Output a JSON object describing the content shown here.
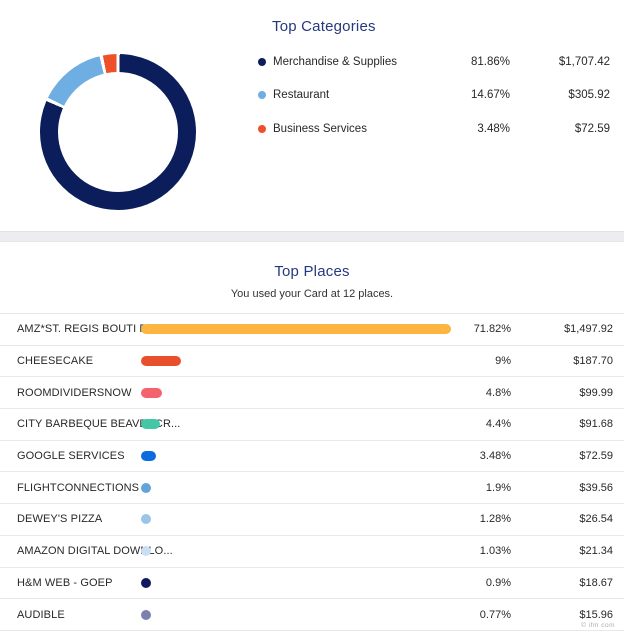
{
  "top_categories": {
    "title": "Top Categories",
    "legend": [
      {
        "label": "Merchandise & Supplies",
        "pct": "81.86%",
        "pct_value": 81.86,
        "amount": "$1,707.42",
        "color": "#0B1E5B"
      },
      {
        "label": "Restaurant",
        "pct": "14.67%",
        "pct_value": 14.67,
        "amount": "$305.92",
        "color": "#6FAEE3"
      },
      {
        "label": "Business Services",
        "pct": "3.48%",
        "pct_value": 3.48,
        "amount": "$72.59",
        "color": "#EE5129"
      }
    ]
  },
  "top_places": {
    "title": "Top Places",
    "subtitle": "You used your Card at 12 places.",
    "rows": [
      {
        "label": "AMZ*ST. REGIS BOUTI FR9A...",
        "pct": "71.82%",
        "pct_value": 71.82,
        "amount": "$1,497.92",
        "color": "#FBB540"
      },
      {
        "label": "CHEESECAKE",
        "pct": "9%",
        "pct_value": 9,
        "amount": "$187.70",
        "color": "#E8502B"
      },
      {
        "label": "ROOMDIVIDERSNOW",
        "pct": "4.8%",
        "pct_value": 4.8,
        "amount": "$99.99",
        "color": "#F4626C"
      },
      {
        "label": "CITY BARBEQUE BEAVERCR...",
        "pct": "4.4%",
        "pct_value": 4.4,
        "amount": "$91.68",
        "color": "#45C6A5"
      },
      {
        "label": "GOOGLE SERVICES",
        "pct": "3.48%",
        "pct_value": 3.48,
        "amount": "$72.59",
        "color": "#0D6BDF"
      },
      {
        "label": "FLIGHTCONNECTIONS",
        "pct": "1.9%",
        "pct_value": 1.9,
        "amount": "$39.56",
        "color": "#64A2DA"
      },
      {
        "label": "DEWEY'S PIZZA",
        "pct": "1.28%",
        "pct_value": 1.28,
        "amount": "$26.54",
        "color": "#9AC4E8"
      },
      {
        "label": "AMAZON DIGITAL DOWNLO...",
        "pct": "1.03%",
        "pct_value": 1.03,
        "amount": "$21.34",
        "color": "#CADFF3"
      },
      {
        "label": "H&M WEB - GOEP",
        "pct": "0.9%",
        "pct_value": 0.9,
        "amount": "$18.67",
        "color": "#11175E"
      },
      {
        "label": "AUDIBLE",
        "pct": "0.77%",
        "pct_value": 0.77,
        "amount": "$15.96",
        "color": "#7B80AE"
      }
    ]
  },
  "watermark": "© ifm com",
  "chart_data": [
    {
      "type": "pie",
      "subtype": "donut",
      "title": "Top Categories",
      "categories": [
        "Merchandise & Supplies",
        "Restaurant",
        "Business Services"
      ],
      "values": [
        81.86,
        14.67,
        3.48
      ],
      "amounts": [
        1707.42,
        305.92,
        72.59
      ],
      "colors": [
        "#0B1E5B",
        "#6FAEE3",
        "#EE5129"
      ],
      "legend_position": "right",
      "start_angle": "top, clockwise"
    },
    {
      "type": "bar",
      "orientation": "horizontal",
      "title": "Top Places",
      "subtitle": "You used your Card at 12 places.",
      "categories": [
        "AMZ*ST. REGIS BOUTI FR9A...",
        "CHEESECAKE",
        "ROOMDIVIDERSNOW",
        "CITY BARBEQUE BEAVERCR...",
        "GOOGLE SERVICES",
        "FLIGHTCONNECTIONS",
        "DEWEY'S PIZZA",
        "AMAZON DIGITAL DOWNLO...",
        "H&M WEB - GOEP",
        "AUDIBLE"
      ],
      "values": [
        71.82,
        9,
        4.8,
        4.4,
        3.48,
        1.9,
        1.28,
        1.03,
        0.9,
        0.77
      ],
      "amounts": [
        1497.92,
        187.7,
        99.99,
        91.68,
        72.59,
        39.56,
        26.54,
        21.34,
        18.67,
        15.96
      ],
      "colors": [
        "#FBB540",
        "#E8502B",
        "#F4626C",
        "#45C6A5",
        "#0D6BDF",
        "#64A2DA",
        "#9AC4E8",
        "#CADFF3",
        "#11175E",
        "#7B80AE"
      ],
      "xlim": [
        0,
        100
      ],
      "grid": false
    }
  ]
}
